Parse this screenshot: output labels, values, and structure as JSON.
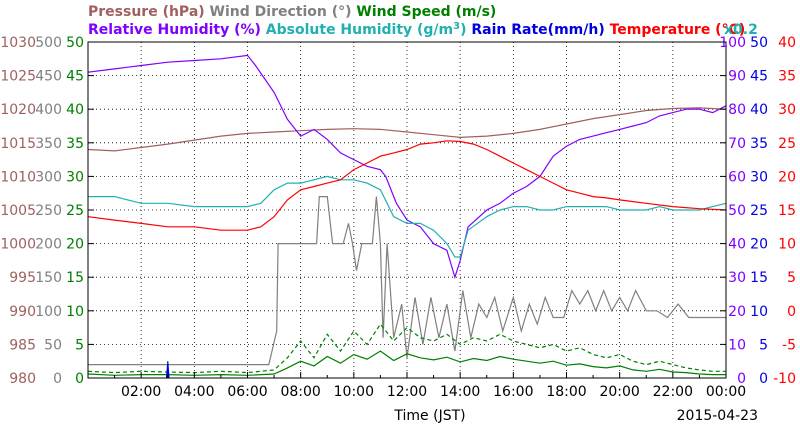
{
  "chart_data": {
    "type": "line",
    "title_line1": [
      {
        "text": "Pressure (hPa)",
        "color": "#a06060"
      },
      {
        "text": "Wind Direction (°)",
        "color": "#808080"
      },
      {
        "text": "Wind Speed (m/s)",
        "color": "#008000"
      }
    ],
    "title_line2": [
      {
        "text": "Relative Humidity (%)",
        "color": "#8000ff"
      },
      {
        "text": "Absolute Humidity (g/m",
        "sup": "3",
        "tail": ")",
        "color": "#20b0b0"
      },
      {
        "text": "Rain Rate(mm/h)",
        "color": "#0000e0"
      },
      {
        "text": "Temperature  (°C)",
        "color": "#ff0000"
      }
    ],
    "abs_hum_multiplier": "x0.2",
    "xlabel": "Time (JST)",
    "date": "2015-04-23",
    "x_ticks": [
      "02:00",
      "04:00",
      "06:00",
      "08:00",
      "10:00",
      "12:00",
      "14:00",
      "16:00",
      "18:00",
      "20:00",
      "22:00",
      "00:00"
    ],
    "xlim_hours": [
      0,
      24
    ],
    "grid": true,
    "left_axes": [
      {
        "name": "pressure",
        "unit": "hPa",
        "color": "#a06060",
        "range": [
          980,
          1030
        ],
        "ticks": [
          "980",
          "985",
          "990",
          "995",
          "1000",
          "1005",
          "1010",
          "1015",
          "1020",
          "1025",
          "1030"
        ]
      },
      {
        "name": "wind_direction",
        "unit": "°",
        "color": "#808080",
        "range": [
          0,
          500
        ],
        "ticks": [
          "0",
          "50",
          "100",
          "150",
          "200",
          "250",
          "300",
          "350",
          "400",
          "450",
          "500"
        ]
      },
      {
        "name": "wind_speed",
        "unit": "m/s",
        "color": "#008000",
        "range": [
          0,
          50
        ],
        "ticks": [
          "0",
          "5",
          "10",
          "15",
          "20",
          "25",
          "30",
          "35",
          "40",
          "45",
          "50"
        ]
      }
    ],
    "right_axes": [
      {
        "name": "relative_humidity",
        "unit": "%",
        "color": "#8000ff",
        "range": [
          0,
          100
        ],
        "ticks": [
          "0",
          "10",
          "20",
          "30",
          "40",
          "50",
          "60",
          "70",
          "80",
          "90",
          "100"
        ]
      },
      {
        "name": "rain_rate",
        "unit": "mm/h",
        "color": "#0000e0",
        "range": [
          0,
          50
        ],
        "ticks": [
          "0",
          "5",
          "10",
          "15",
          "20",
          "25",
          "30",
          "35",
          "40",
          "45",
          "50"
        ]
      },
      {
        "name": "temperature",
        "unit": "°C",
        "color": "#ff0000",
        "range": [
          -10,
          40
        ],
        "ticks": [
          "-10",
          "-5",
          "0",
          "5",
          "10",
          "15",
          "20",
          "25",
          "30",
          "35",
          "40"
        ]
      }
    ],
    "series": [
      {
        "name": "Pressure (hPa)",
        "axis": "pressure",
        "color": "#a06060",
        "x": [
          0,
          1,
          2,
          3,
          4,
          5,
          6,
          7,
          8,
          9,
          10,
          11,
          12,
          13,
          14,
          15,
          16,
          17,
          18,
          19,
          20,
          21,
          22,
          23,
          24
        ],
        "y": [
          1014,
          1013.8,
          1014.3,
          1014.8,
          1015.4,
          1016,
          1016.4,
          1016.6,
          1016.8,
          1017,
          1017.1,
          1017,
          1016.6,
          1016.2,
          1015.8,
          1016,
          1016.4,
          1017,
          1017.8,
          1018.6,
          1019.2,
          1019.8,
          1020.1,
          1020.2,
          1020
        ]
      },
      {
        "name": "Wind Direction (°)",
        "axis": "wind_direction",
        "color": "#808080",
        "x": [
          0,
          6.8,
          7.1,
          7.15,
          7.3,
          7.5,
          7.8,
          8.1,
          8.4,
          8.6,
          8.7,
          9.0,
          9.2,
          9.4,
          9.6,
          9.8,
          9.95,
          10.1,
          10.3,
          10.5,
          10.7,
          10.85,
          11.0,
          11.1,
          11.25,
          11.5,
          11.8,
          12.0,
          12.3,
          12.6,
          12.9,
          13.2,
          13.5,
          13.8,
          14.1,
          14.4,
          14.7,
          15.0,
          15.3,
          15.6,
          16.0,
          16.3,
          16.6,
          16.9,
          17.2,
          17.5,
          17.9,
          18.2,
          18.5,
          18.8,
          19.1,
          19.4,
          19.7,
          20.0,
          20.3,
          20.6,
          21.0,
          21.4,
          21.8,
          22.2,
          22.6,
          23.0,
          23.5,
          24.0
        ],
        "y": [
          20,
          20,
          70,
          200,
          200,
          200,
          200,
          200,
          200,
          200,
          270,
          270,
          200,
          200,
          200,
          230,
          200,
          160,
          200,
          200,
          200,
          270,
          200,
          60,
          200,
          60,
          110,
          30,
          120,
          50,
          120,
          60,
          110,
          40,
          130,
          60,
          110,
          90,
          120,
          70,
          120,
          70,
          110,
          80,
          120,
          90,
          90,
          130,
          110,
          130,
          100,
          130,
          100,
          120,
          100,
          130,
          100,
          100,
          90,
          110,
          90,
          90,
          90,
          90
        ]
      },
      {
        "name": "Wind Speed (m/s)",
        "axis": "wind_speed",
        "color": "#008000",
        "x": [
          0,
          1,
          2,
          3,
          4,
          5,
          6,
          7,
          7.5,
          8,
          8.5,
          9,
          9.5,
          10,
          10.5,
          11,
          11.5,
          12,
          12.5,
          13,
          13.5,
          14,
          14.5,
          15,
          15.5,
          16,
          16.5,
          17,
          17.5,
          18,
          18.5,
          19,
          19.5,
          20,
          20.5,
          21,
          21.5,
          22,
          22.5,
          23,
          23.5,
          24
        ],
        "y": [
          0.6,
          0.4,
          0.5,
          0.5,
          0.4,
          0.5,
          0.4,
          0.6,
          1.5,
          2.5,
          1.8,
          3.2,
          2.2,
          3.5,
          2.8,
          4.0,
          2.6,
          3.6,
          3.0,
          2.7,
          3.1,
          2.4,
          2.9,
          2.6,
          3.2,
          2.8,
          2.5,
          2.2,
          2.5,
          1.9,
          2.1,
          1.7,
          1.5,
          1.8,
          1.2,
          1.0,
          1.3,
          0.9,
          0.8,
          0.6,
          0.5,
          0.5
        ]
      },
      {
        "name": "Wind Speed Max (m/s)",
        "axis": "wind_speed",
        "color": "#008000",
        "dashed": true,
        "x": [
          0,
          1,
          2,
          3,
          4,
          5,
          6,
          7,
          7.5,
          8,
          8.5,
          9,
          9.5,
          10,
          10.5,
          11,
          11.5,
          12,
          12.5,
          13,
          13.5,
          14,
          14.5,
          15,
          15.5,
          16,
          16.5,
          17,
          17.5,
          18,
          18.5,
          19,
          19.5,
          20,
          20.5,
          21,
          21.5,
          22,
          22.5,
          23,
          23.5,
          24
        ],
        "y": [
          1.0,
          0.8,
          1.0,
          0.9,
          0.8,
          1.0,
          0.8,
          1.2,
          3.0,
          5.5,
          3.0,
          6.5,
          4.0,
          7.0,
          5.0,
          8.0,
          5.5,
          7.5,
          6.0,
          5.5,
          6.5,
          5.0,
          6.0,
          5.5,
          6.5,
          5.5,
          5.0,
          4.5,
          5.0,
          4.0,
          4.5,
          3.5,
          3.0,
          3.5,
          2.5,
          2.0,
          2.5,
          2.0,
          1.5,
          1.2,
          1.0,
          1.0
        ]
      },
      {
        "name": "Relative Humidity (%)",
        "axis": "relative_humidity",
        "color": "#8000ff",
        "x": [
          0,
          1,
          2,
          3,
          4,
          5,
          6,
          6.3,
          7,
          7.5,
          8,
          8.5,
          9,
          9.5,
          10,
          10.5,
          11,
          11.2,
          11.6,
          12,
          12.5,
          13,
          13.5,
          13.8,
          14,
          14.3,
          15,
          15.5,
          16,
          16.5,
          17,
          17.5,
          18,
          18.5,
          19,
          19.5,
          20,
          20.5,
          21,
          21.5,
          22,
          22.5,
          23,
          23.5,
          24
        ],
        "y": [
          91,
          92,
          93,
          94,
          94.5,
          95,
          96,
          93,
          85,
          77,
          72,
          74,
          71,
          67,
          65,
          63,
          62,
          60,
          52,
          47,
          45,
          40,
          38,
          30,
          35,
          45,
          50,
          52,
          55,
          57,
          60,
          66,
          69,
          71,
          72,
          73,
          74,
          75,
          76,
          78,
          79,
          80,
          80,
          79,
          81
        ]
      },
      {
        "name": "Absolute Humidity (g/m3) x0.2",
        "axis": "rain_rate",
        "color": "#20b0b0",
        "x": [
          0,
          1,
          2,
          3,
          4,
          5,
          6,
          6.5,
          7,
          7.5,
          8,
          8.5,
          9,
          9.5,
          10,
          10.5,
          11,
          11.5,
          12,
          12.5,
          13,
          13.5,
          13.8,
          14,
          14.3,
          15,
          15.5,
          16,
          16.5,
          17,
          17.5,
          18,
          18.5,
          19,
          19.5,
          20,
          20.5,
          21,
          21.5,
          22,
          22.5,
          23,
          23.5,
          24
        ],
        "y": [
          27,
          27,
          26,
          26,
          25.5,
          25.5,
          25.5,
          26,
          28,
          29,
          29,
          29.5,
          30,
          29.5,
          29.5,
          29,
          28,
          24,
          23,
          23,
          22,
          20,
          18,
          18,
          22,
          24,
          25,
          25.5,
          25.5,
          25,
          25,
          25.5,
          25.5,
          25.5,
          25.5,
          25,
          25,
          25,
          25.5,
          25,
          25,
          25,
          25.5,
          26
        ]
      },
      {
        "name": "Rain Rate(mm/h)",
        "axis": "rain_rate",
        "color": "#0000e0",
        "x": [
          0,
          2.95,
          3.0,
          3.05,
          3.1,
          24
        ],
        "y": [
          0,
          0,
          2.5,
          0,
          0,
          0
        ]
      },
      {
        "name": "Temperature  (°C)",
        "axis": "temperature",
        "color": "#ff0000",
        "x": [
          0,
          1,
          2,
          3,
          4,
          5,
          6,
          6.5,
          7,
          7.5,
          8,
          8.5,
          9,
          9.5,
          10,
          10.5,
          11,
          11.5,
          12,
          12.5,
          13,
          13.5,
          14,
          14.5,
          15,
          15.5,
          16,
          16.5,
          17,
          17.5,
          18,
          18.5,
          19,
          19.5,
          20,
          21,
          22,
          23,
          24
        ],
        "y": [
          14,
          13.5,
          13,
          12.5,
          12.5,
          12,
          12,
          12.5,
          14,
          16.5,
          18,
          18.5,
          19,
          19.5,
          21,
          22,
          23,
          23.5,
          24,
          24.8,
          25,
          25.3,
          25.2,
          24.8,
          24,
          23,
          22,
          21,
          20,
          19,
          18,
          17.5,
          17,
          16.8,
          16.5,
          16,
          15.5,
          15.2,
          15
        ]
      }
    ]
  }
}
